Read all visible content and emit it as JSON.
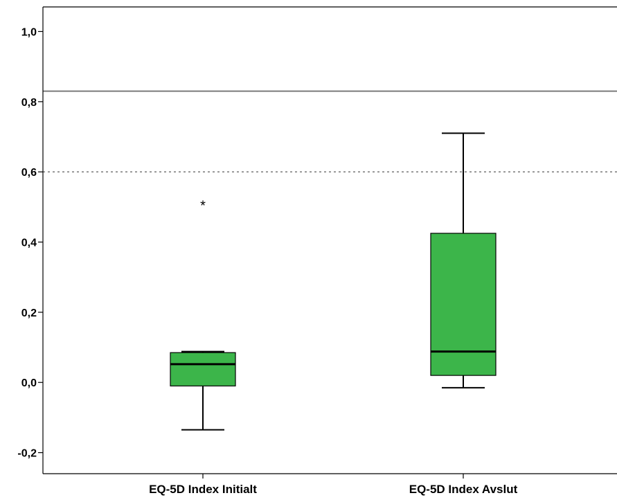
{
  "chart_data": {
    "type": "boxplot",
    "title": "",
    "xlabel": "",
    "ylabel": "",
    "ylim": [
      -0.26,
      1.07
    ],
    "yticks": [
      -0.2,
      0.0,
      0.2,
      0.4,
      0.6,
      0.8,
      1.0
    ],
    "ytick_labels": [
      "-0,2",
      "0,0",
      "0,2",
      "0,4",
      "0,6",
      "0,8",
      "1,0"
    ],
    "categories": [
      "EQ-5D Index Initialt",
      "EQ-5D Index Avslut"
    ],
    "boxes": [
      {
        "category": "EQ-5D Index Initialt",
        "whisker_low": -0.135,
        "q1": -0.01,
        "median": 0.052,
        "q3": 0.085,
        "whisker_high": 0.088,
        "outliers": [
          {
            "value": 0.515,
            "marker": "*"
          }
        ]
      },
      {
        "category": "EQ-5D Index Avslut",
        "whisker_low": -0.015,
        "q1": 0.02,
        "median": 0.088,
        "q3": 0.425,
        "whisker_high": 0.71,
        "outliers": []
      }
    ],
    "reference_lines": [
      {
        "value": 0.83,
        "style": "solid"
      },
      {
        "value": 0.6,
        "style": "dotted"
      }
    ],
    "box_color": "#3cb54a",
    "grid": false,
    "legend": "none"
  }
}
